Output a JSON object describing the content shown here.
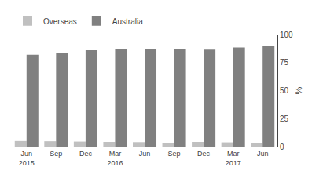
{
  "chart_data": {
    "type": "bar",
    "categories": [
      "Jun\n2015",
      "Sep",
      "Dec",
      "Mar\n2016",
      "Jun",
      "Sep",
      "Dec",
      "Mar\n2017",
      "Jun"
    ],
    "series": [
      {
        "name": "Overseas",
        "color": "#c0c0c0",
        "values": [
          5.0,
          4.8,
          4.5,
          4.2,
          4.0,
          3.5,
          4.2,
          3.8,
          3.0
        ]
      },
      {
        "name": "Australia",
        "color": "#808080",
        "values": [
          82.0,
          84.0,
          86.0,
          87.5,
          87.5,
          87.5,
          86.5,
          88.5,
          89.5
        ]
      }
    ],
    "ylabel": "%",
    "ylim": [
      0,
      100
    ],
    "yticks": [
      0,
      25,
      50,
      75,
      100
    ],
    "grid": false,
    "legend": "upper left"
  }
}
